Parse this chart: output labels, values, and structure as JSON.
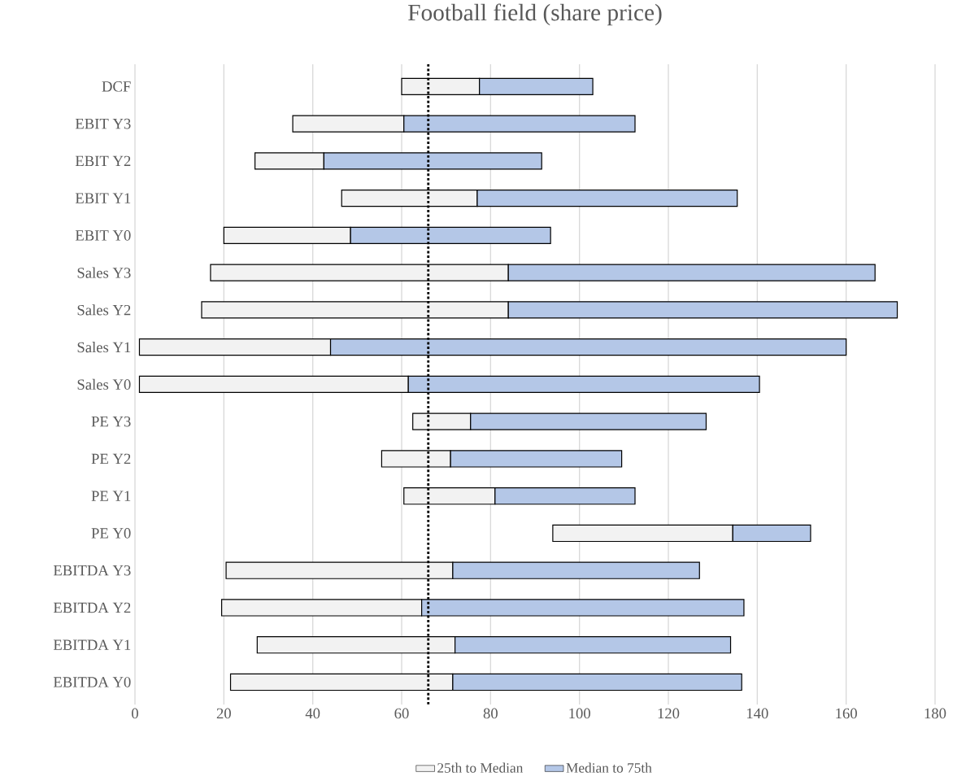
{
  "chart_data": {
    "type": "bar",
    "orientation": "horizontal",
    "title": "Football field (share price)",
    "categories": [
      "DCF",
      "EBIT Y3",
      "EBIT Y2",
      "EBIT Y1",
      "EBIT Y0",
      "Sales Y3",
      "Sales Y2",
      "Sales Y1",
      "Sales Y0",
      "PE Y3",
      "PE Y2",
      "PE Y1",
      "PE Y0",
      "EBITDA Y3",
      "EBITDA Y2",
      "EBITDA Y1",
      "EBITDA Y0"
    ],
    "series": [
      {
        "name": "25th to Median",
        "color": "#f2f2f2",
        "base": [
          60,
          35.5,
          27,
          46.5,
          20,
          17,
          15,
          1,
          1,
          62.5,
          55.5,
          60.5,
          94,
          20.5,
          19.5,
          27.5,
          21.5
        ],
        "values": [
          17.5,
          25,
          15.5,
          30.5,
          28.5,
          67,
          69,
          43,
          60.5,
          13,
          15.5,
          20.5,
          40.5,
          51,
          45,
          44.5,
          50
        ]
      },
      {
        "name": "Median to 75th",
        "color": "#b4c7e7",
        "base": [
          77.5,
          60.5,
          42.5,
          77,
          48.5,
          84,
          84,
          44,
          61.5,
          75.5,
          71,
          81,
          134.5,
          71.5,
          64.5,
          72,
          71.5
        ],
        "values": [
          25.5,
          52,
          49,
          58.5,
          45,
          82.5,
          87.5,
          116,
          79,
          53,
          38.5,
          31.5,
          17.5,
          55.5,
          72.5,
          62,
          65
        ]
      }
    ],
    "xlim": [
      0,
      180
    ],
    "xticks": [
      0,
      20,
      40,
      60,
      80,
      100,
      120,
      140,
      160,
      180
    ],
    "grid": "x",
    "legend": "bottom",
    "ref_lines": [
      {
        "axis": "x",
        "value": 66,
        "color": "#000000",
        "line_style": "dotted"
      }
    ]
  }
}
